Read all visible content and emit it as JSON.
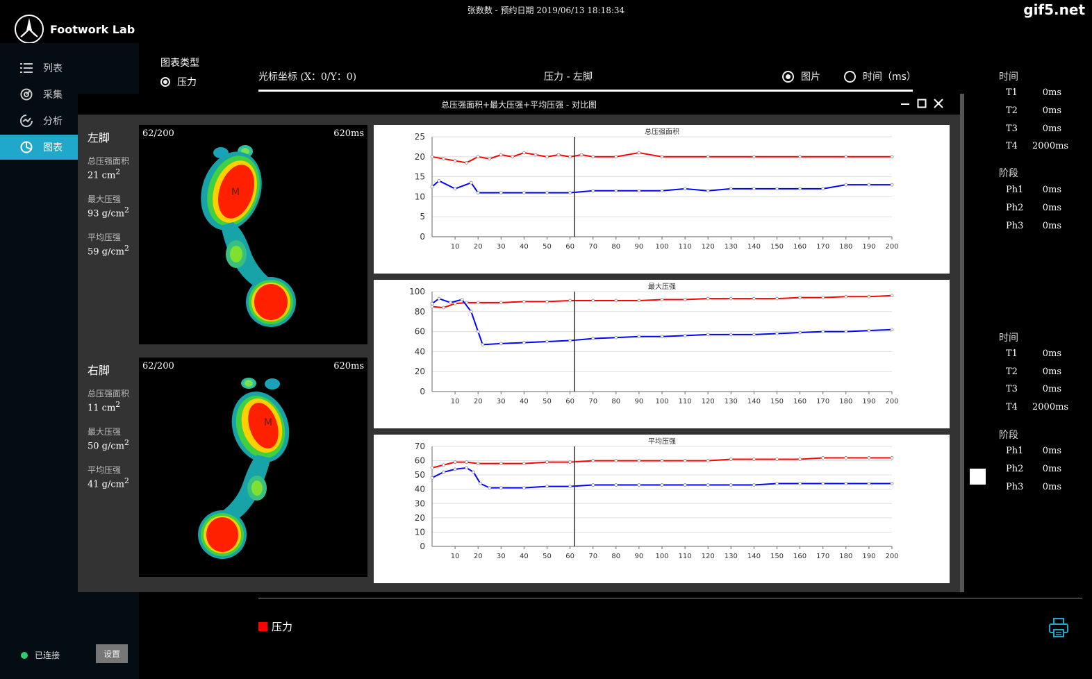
{
  "app": {
    "name": "Footwork Lab",
    "title": "张数数 - 预约日期 2019/06/13 18:18:34",
    "watermark": "gif5.net"
  },
  "sidebar": {
    "items": [
      {
        "label": "列表",
        "icon": "list-icon"
      },
      {
        "label": "采集",
        "icon": "capture-icon"
      },
      {
        "label": "分析",
        "icon": "analysis-icon"
      },
      {
        "label": "图表",
        "icon": "chart-icon",
        "active": true
      }
    ],
    "status": "已连接",
    "settings_label": "设置"
  },
  "controls": {
    "chart_type_label": "图表类型",
    "chart_type_option": "压力",
    "cursor_coord": "光标坐标 (X：0/Y：0)",
    "view_title": "压力 - 左脚",
    "mode_image": "图片",
    "mode_time": "时间（ms）"
  },
  "dialog": {
    "title": "总压强面积+最大压强+平均压强 - 对比图"
  },
  "feet": [
    {
      "name": "左脚",
      "frame": "62/200",
      "time": "620ms",
      "metrics": [
        {
          "label": "总压强面积",
          "value": "21 cm",
          "sup": "2"
        },
        {
          "label": "最大压强",
          "value": "93 g/cm",
          "sup": "2"
        },
        {
          "label": "平均压强",
          "value": "59 g/cm",
          "sup": "2"
        }
      ]
    },
    {
      "name": "右脚",
      "frame": "62/200",
      "time": "620ms",
      "metrics": [
        {
          "label": "总压强面积",
          "value": "11 cm",
          "sup": "2"
        },
        {
          "label": "最大压强",
          "value": "50 g/cm",
          "sup": "2"
        },
        {
          "label": "平均压强",
          "value": "41 g/cm",
          "sup": "2"
        }
      ]
    }
  ],
  "right_panel": [
    {
      "time_label": "时间",
      "times": [
        {
          "k": "T1",
          "v": "0ms"
        },
        {
          "k": "T2",
          "v": "0ms"
        },
        {
          "k": "T3",
          "v": "0ms"
        },
        {
          "k": "T4",
          "v": "2000ms"
        }
      ],
      "phase_label": "阶段",
      "phases": [
        {
          "k": "Ph1",
          "v": "0ms"
        },
        {
          "k": "Ph2",
          "v": "0ms"
        },
        {
          "k": "Ph3",
          "v": "0ms"
        }
      ]
    },
    {
      "time_label": "时间",
      "times": [
        {
          "k": "T1",
          "v": "0ms"
        },
        {
          "k": "T2",
          "v": "0ms"
        },
        {
          "k": "T3",
          "v": "0ms"
        },
        {
          "k": "T4",
          "v": "2000ms"
        }
      ],
      "phase_label": "阶段",
      "phases": [
        {
          "k": "Ph1",
          "v": "0ms"
        },
        {
          "k": "Ph2",
          "v": "0ms"
        },
        {
          "k": "Ph3",
          "v": "0ms"
        }
      ]
    }
  ],
  "legend": {
    "label": "压力",
    "color": "#ff0000"
  },
  "chart_data": [
    {
      "type": "line",
      "title": "总压强面积",
      "xlim": [
        0,
        200
      ],
      "ylim": [
        0,
        25
      ],
      "yticks": [
        0,
        5,
        10,
        15,
        20,
        25
      ],
      "xticks": [
        10,
        20,
        30,
        40,
        50,
        60,
        70,
        80,
        90,
        100,
        110,
        120,
        130,
        140,
        150,
        160,
        170,
        180,
        190,
        200
      ],
      "cursor_x": 62,
      "series": [
        {
          "color": "#ff0000",
          "x": [
            0,
            5,
            10,
            15,
            20,
            25,
            30,
            35,
            40,
            45,
            50,
            55,
            60,
            65,
            70,
            80,
            90,
            100,
            120,
            140,
            160,
            180,
            200
          ],
          "y": [
            20,
            19.5,
            19,
            18.5,
            20,
            19.5,
            20.5,
            20,
            21,
            20.5,
            20,
            20.5,
            20,
            20.5,
            20,
            20,
            21,
            20,
            20,
            20,
            20,
            20,
            20
          ]
        },
        {
          "color": "#0000ff",
          "x": [
            0,
            3,
            10,
            17,
            20,
            30,
            40,
            50,
            60,
            70,
            80,
            90,
            100,
            110,
            120,
            130,
            140,
            150,
            160,
            170,
            180,
            190,
            200
          ],
          "y": [
            12.5,
            14,
            12,
            13.5,
            11,
            11,
            11,
            11,
            11,
            11.5,
            11.5,
            11.5,
            11.5,
            12,
            11.5,
            12,
            12,
            12,
            12,
            12,
            13,
            13,
            13
          ]
        }
      ]
    },
    {
      "type": "line",
      "title": "最大压强",
      "xlim": [
        0,
        200
      ],
      "ylim": [
        0,
        100
      ],
      "yticks": [
        0,
        20,
        40,
        60,
        80,
        100
      ],
      "xticks": [
        10,
        20,
        30,
        40,
        50,
        60,
        70,
        80,
        90,
        100,
        110,
        120,
        130,
        140,
        150,
        160,
        170,
        180,
        190,
        200
      ],
      "cursor_x": 62,
      "series": [
        {
          "color": "#ff0000",
          "x": [
            0,
            5,
            10,
            15,
            20,
            30,
            40,
            50,
            60,
            70,
            80,
            90,
            100,
            110,
            120,
            130,
            140,
            150,
            160,
            170,
            180,
            190,
            200
          ],
          "y": [
            85,
            84,
            88,
            89,
            89,
            89,
            90,
            90,
            91,
            91,
            91,
            91,
            92,
            92,
            93,
            93,
            93,
            93,
            94,
            94,
            95,
            95,
            96
          ]
        },
        {
          "color": "#0000ff",
          "x": [
            0,
            3,
            8,
            13,
            17,
            20,
            22,
            30,
            40,
            50,
            60,
            70,
            80,
            90,
            100,
            110,
            120,
            130,
            140,
            150,
            160,
            170,
            180,
            190,
            200
          ],
          "y": [
            88,
            93,
            89,
            92,
            80,
            60,
            47,
            48,
            49,
            50,
            51,
            53,
            54,
            55,
            55,
            56,
            57,
            57,
            57,
            58,
            59,
            60,
            60,
            61,
            62
          ]
        }
      ]
    },
    {
      "type": "line",
      "title": "平均压强",
      "xlim": [
        0,
        200
      ],
      "ylim": [
        0,
        70
      ],
      "yticks": [
        0,
        10,
        20,
        30,
        40,
        50,
        60,
        70
      ],
      "xticks": [
        10,
        20,
        30,
        40,
        50,
        60,
        70,
        80,
        90,
        100,
        110,
        120,
        130,
        140,
        150,
        160,
        170,
        180,
        190,
        200
      ],
      "cursor_x": 62,
      "series": [
        {
          "color": "#ff0000",
          "x": [
            0,
            5,
            10,
            15,
            20,
            30,
            40,
            50,
            60,
            70,
            80,
            90,
            100,
            110,
            120,
            130,
            140,
            150,
            160,
            170,
            180,
            190,
            200
          ],
          "y": [
            55,
            57,
            59,
            59,
            58,
            58,
            58,
            59,
            59,
            60,
            60,
            60,
            60,
            60,
            60,
            61,
            61,
            61,
            61,
            62,
            62,
            62,
            62
          ]
        },
        {
          "color": "#0000ff",
          "x": [
            0,
            5,
            10,
            15,
            18,
            21,
            25,
            30,
            40,
            50,
            60,
            70,
            80,
            90,
            100,
            110,
            120,
            130,
            140,
            150,
            160,
            170,
            180,
            190,
            200
          ],
          "y": [
            48,
            52,
            54,
            55,
            52,
            44,
            41,
            41,
            41,
            42,
            42,
            43,
            43,
            43,
            43,
            43,
            43,
            43,
            43,
            44,
            44,
            44,
            44,
            44,
            44
          ]
        }
      ]
    }
  ]
}
